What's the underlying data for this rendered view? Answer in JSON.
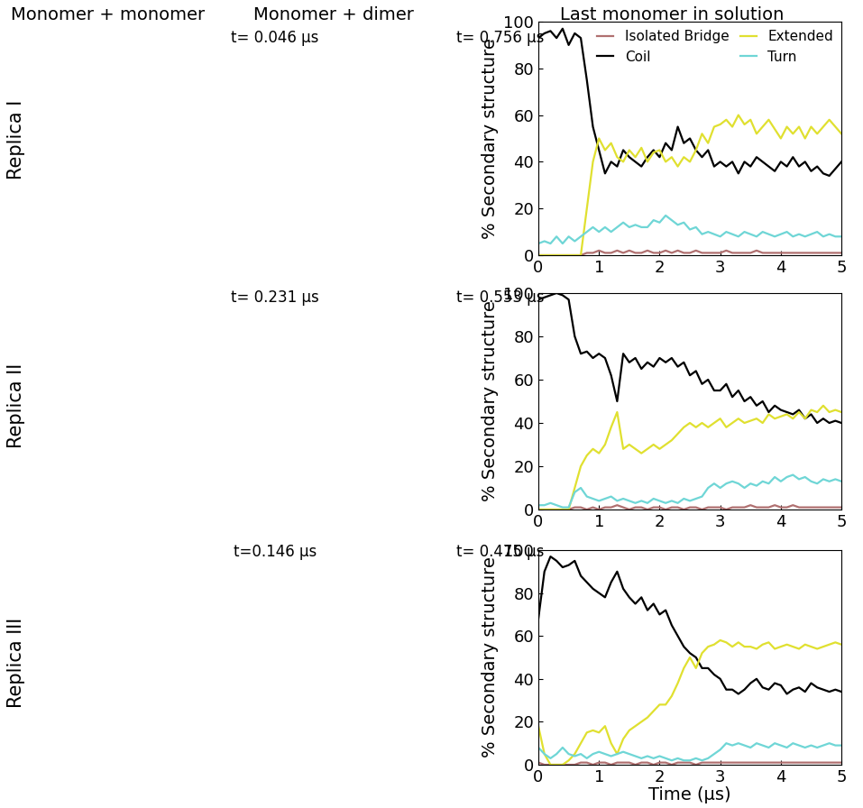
{
  "column_headers": [
    "Monomer + monomer",
    "Monomer + dimer",
    "Last monomer in solution"
  ],
  "rows": [
    {
      "label": "Replica I",
      "snapshot_times": [
        "t= 0.046 µs",
        "t= 0.756 µs"
      ]
    },
    {
      "label": "Replica II",
      "snapshot_times": [
        "t= 0.231 µs",
        "t= 0.553 µs"
      ]
    },
    {
      "label": "Replica III",
      "snapshot_times": [
        "t=0.146 µs",
        "t= 0.475 µs"
      ]
    }
  ],
  "chart_data": [
    {
      "type": "line",
      "y_label": "% Secondary structure",
      "legend": "upper right",
      "xlim": [
        0,
        5
      ],
      "xticks": [
        0,
        1,
        2,
        3,
        4,
        5
      ],
      "ylim": [
        0,
        100
      ],
      "yticks": [
        0,
        20,
        40,
        60,
        80,
        100
      ],
      "x": [
        0,
        0.1,
        0.2,
        0.3,
        0.4,
        0.5,
        0.6,
        0.7,
        0.8,
        0.9,
        1.0,
        1.1,
        1.2,
        1.3,
        1.4,
        1.5,
        1.6,
        1.7,
        1.8,
        1.9,
        2.0,
        2.1,
        2.2,
        2.3,
        2.4,
        2.5,
        2.6,
        2.7,
        2.8,
        2.9,
        3.0,
        3.1,
        3.2,
        3.3,
        3.4,
        3.5,
        3.6,
        3.7,
        3.8,
        3.9,
        4.0,
        4.1,
        4.2,
        4.3,
        4.4,
        4.5,
        4.6,
        4.7,
        4.8,
        4.9,
        5.0
      ],
      "series": [
        {
          "name": "Isolated Bridge",
          "color": "#b07070",
          "values": [
            0,
            0,
            0,
            0,
            0,
            0,
            0,
            0,
            1,
            1,
            2,
            1,
            1,
            2,
            1,
            2,
            1,
            1,
            2,
            1,
            1,
            2,
            1,
            2,
            1,
            1,
            2,
            1,
            1,
            1,
            1,
            2,
            1,
            1,
            1,
            1,
            2,
            1,
            1,
            1,
            1,
            1,
            1,
            1,
            1,
            1,
            1,
            1,
            1,
            1,
            1
          ]
        },
        {
          "name": "Coil",
          "color": "#000000",
          "values": [
            93,
            95,
            96,
            93,
            97,
            90,
            95,
            93,
            75,
            55,
            45,
            35,
            40,
            38,
            45,
            42,
            40,
            38,
            42,
            45,
            42,
            48,
            45,
            55,
            48,
            50,
            45,
            42,
            45,
            38,
            40,
            38,
            40,
            35,
            40,
            38,
            42,
            40,
            38,
            36,
            40,
            38,
            42,
            38,
            40,
            36,
            38,
            35,
            34,
            37,
            40
          ]
        },
        {
          "name": "Extended",
          "color": "#e0e030",
          "values": [
            0,
            0,
            0,
            0,
            0,
            0,
            0,
            0,
            20,
            40,
            50,
            45,
            48,
            42,
            40,
            45,
            42,
            46,
            40,
            44,
            45,
            40,
            42,
            38,
            42,
            40,
            45,
            52,
            48,
            55,
            56,
            58,
            55,
            60,
            56,
            58,
            52,
            55,
            58,
            54,
            50,
            55,
            52,
            55,
            50,
            55,
            52,
            55,
            58,
            55,
            52
          ]
        },
        {
          "name": "Turn",
          "color": "#6fd6d6",
          "values": [
            5,
            6,
            5,
            8,
            5,
            8,
            6,
            8,
            10,
            12,
            10,
            12,
            10,
            12,
            14,
            12,
            13,
            12,
            12,
            15,
            14,
            17,
            15,
            13,
            14,
            11,
            12,
            9,
            10,
            9,
            8,
            10,
            9,
            8,
            10,
            9,
            8,
            10,
            9,
            8,
            9,
            10,
            8,
            9,
            8,
            9,
            10,
            8,
            9,
            8,
            8
          ]
        }
      ]
    },
    {
      "type": "line",
      "y_label": "% Secondary structure",
      "xlim": [
        0,
        5
      ],
      "xticks": [
        0,
        1,
        2,
        3,
        4,
        5
      ],
      "ylim": [
        0,
        100
      ],
      "yticks": [
        0,
        20,
        40,
        60,
        80,
        100
      ],
      "x": [
        0,
        0.1,
        0.2,
        0.3,
        0.4,
        0.5,
        0.6,
        0.7,
        0.8,
        0.9,
        1.0,
        1.1,
        1.2,
        1.3,
        1.4,
        1.5,
        1.6,
        1.7,
        1.8,
        1.9,
        2.0,
        2.1,
        2.2,
        2.3,
        2.4,
        2.5,
        2.6,
        2.7,
        2.8,
        2.9,
        3.0,
        3.1,
        3.2,
        3.3,
        3.4,
        3.5,
        3.6,
        3.7,
        3.8,
        3.9,
        4.0,
        4.1,
        4.2,
        4.3,
        4.4,
        4.5,
        4.6,
        4.7,
        4.8,
        4.9,
        5.0
      ],
      "series": [
        {
          "name": "Isolated Bridge",
          "color": "#b07070",
          "values": [
            0,
            0,
            0,
            0,
            0,
            0,
            1,
            1,
            0,
            1,
            0,
            1,
            1,
            2,
            1,
            0,
            1,
            1,
            0,
            1,
            1,
            0,
            1,
            1,
            0,
            1,
            1,
            0,
            1,
            1,
            1,
            0,
            1,
            1,
            1,
            2,
            1,
            1,
            1,
            2,
            1,
            1,
            2,
            1,
            1,
            1,
            1,
            1,
            1,
            1,
            1
          ]
        },
        {
          "name": "Coil",
          "color": "#000000",
          "values": [
            97,
            98,
            99,
            100,
            99,
            97,
            80,
            72,
            73,
            70,
            72,
            70,
            62,
            50,
            72,
            68,
            70,
            65,
            68,
            66,
            70,
            68,
            70,
            66,
            68,
            62,
            64,
            58,
            60,
            55,
            55,
            58,
            52,
            55,
            50,
            52,
            48,
            50,
            45,
            48,
            46,
            45,
            44,
            46,
            42,
            44,
            40,
            42,
            40,
            41,
            40
          ]
        },
        {
          "name": "Extended",
          "color": "#e0e030",
          "values": [
            0,
            0,
            0,
            0,
            0,
            0,
            10,
            20,
            25,
            28,
            26,
            30,
            38,
            45,
            28,
            30,
            28,
            26,
            28,
            30,
            28,
            30,
            32,
            35,
            38,
            40,
            38,
            40,
            38,
            40,
            42,
            38,
            40,
            42,
            40,
            41,
            42,
            40,
            44,
            42,
            43,
            44,
            42,
            45,
            42,
            46,
            45,
            48,
            45,
            46,
            45
          ]
        },
        {
          "name": "Turn",
          "color": "#6fd6d6",
          "values": [
            2,
            2,
            3,
            2,
            1,
            1,
            8,
            10,
            6,
            5,
            4,
            5,
            6,
            4,
            5,
            4,
            3,
            4,
            3,
            5,
            4,
            3,
            4,
            3,
            5,
            4,
            5,
            6,
            10,
            12,
            10,
            12,
            13,
            12,
            10,
            12,
            11,
            13,
            12,
            15,
            13,
            15,
            16,
            14,
            15,
            13,
            12,
            14,
            13,
            14,
            13
          ]
        }
      ]
    },
    {
      "type": "line",
      "x_label": "Time (µs)",
      "y_label": "% Secondary structure",
      "xlim": [
        0,
        5
      ],
      "xticks": [
        0,
        1,
        2,
        3,
        4,
        5
      ],
      "ylim": [
        0,
        100
      ],
      "yticks": [
        0,
        20,
        40,
        60,
        80,
        100
      ],
      "x": [
        0,
        0.1,
        0.2,
        0.3,
        0.4,
        0.5,
        0.6,
        0.7,
        0.8,
        0.9,
        1.0,
        1.1,
        1.2,
        1.3,
        1.4,
        1.5,
        1.6,
        1.7,
        1.8,
        1.9,
        2.0,
        2.1,
        2.2,
        2.3,
        2.4,
        2.5,
        2.6,
        2.7,
        2.8,
        2.9,
        3.0,
        3.1,
        3.2,
        3.3,
        3.4,
        3.5,
        3.6,
        3.7,
        3.8,
        3.9,
        4.0,
        4.1,
        4.2,
        4.3,
        4.4,
        4.5,
        4.6,
        4.7,
        4.8,
        4.9,
        5.0
      ],
      "series": [
        {
          "name": "Isolated Bridge",
          "color": "#b07070",
          "values": [
            1,
            0,
            0,
            0,
            0,
            0,
            0,
            1,
            1,
            0,
            1,
            1,
            0,
            1,
            1,
            1,
            0,
            1,
            1,
            0,
            1,
            1,
            0,
            1,
            1,
            1,
            0,
            1,
            1,
            1,
            1,
            1,
            1,
            1,
            1,
            1,
            1,
            1,
            1,
            1,
            1,
            1,
            1,
            1,
            1,
            1,
            1,
            1,
            1,
            1,
            1
          ]
        },
        {
          "name": "Coil",
          "color": "#000000",
          "values": [
            68,
            90,
            97,
            95,
            92,
            93,
            95,
            88,
            85,
            82,
            80,
            78,
            85,
            90,
            82,
            78,
            75,
            78,
            72,
            75,
            70,
            72,
            65,
            60,
            55,
            52,
            50,
            45,
            45,
            42,
            40,
            35,
            35,
            33,
            35,
            38,
            40,
            36,
            35,
            38,
            37,
            33,
            35,
            36,
            34,
            38,
            36,
            35,
            34,
            35,
            34
          ]
        },
        {
          "name": "Extended",
          "color": "#e0e030",
          "values": [
            18,
            5,
            0,
            0,
            0,
            2,
            5,
            10,
            15,
            16,
            15,
            18,
            10,
            5,
            12,
            16,
            18,
            20,
            22,
            25,
            28,
            28,
            32,
            38,
            45,
            50,
            45,
            52,
            55,
            56,
            58,
            57,
            55,
            57,
            55,
            55,
            54,
            56,
            57,
            54,
            55,
            56,
            55,
            54,
            56,
            55,
            54,
            55,
            56,
            57,
            56
          ]
        },
        {
          "name": "Turn",
          "color": "#6fd6d6",
          "values": [
            8,
            5,
            3,
            5,
            8,
            5,
            4,
            5,
            3,
            5,
            6,
            5,
            4,
            5,
            6,
            5,
            4,
            3,
            4,
            3,
            4,
            3,
            2,
            3,
            2,
            2,
            3,
            2,
            3,
            5,
            7,
            10,
            9,
            10,
            9,
            8,
            10,
            9,
            8,
            10,
            9,
            8,
            10,
            9,
            8,
            9,
            8,
            9,
            10,
            9,
            9
          ]
        }
      ]
    }
  ]
}
